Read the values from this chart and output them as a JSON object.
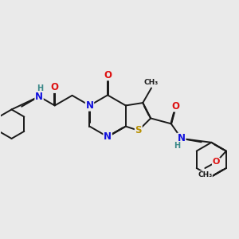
{
  "background_color": "#eaeaea",
  "bond_color": "#1a1a1a",
  "bond_width": 1.4,
  "atom_colors": {
    "N": "#1010dd",
    "O": "#dd1010",
    "S": "#b89000",
    "H": "#3a8888",
    "C": "#1a1a1a"
  },
  "font_size_atom": 8.5,
  "font_size_small": 7.0,
  "font_size_subscript": 6.0
}
